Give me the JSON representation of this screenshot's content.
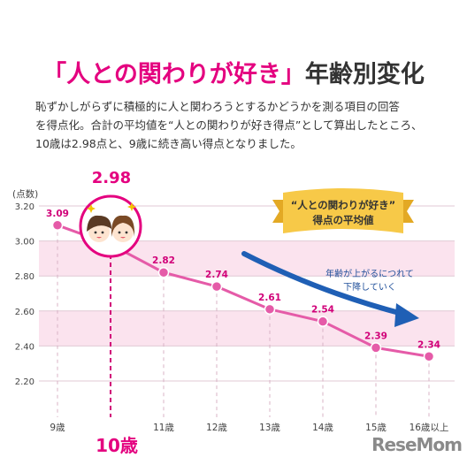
{
  "title": {
    "part1": "「人との関わりが好き」",
    "part2": "年齢別変化"
  },
  "description": "恥ずかしがらずに積極的に人と関わろうとするかどうかを測る項目の回答\nを得点化。合計の平均値を“人との関わりが好き得点”として算出したところ、\n10歳は2.98点と、9歳に続き高い得点となりました。",
  "banner": {
    "line1": "“人との関わりが好き”",
    "line2": "得点の平均値"
  },
  "trend_note": {
    "line1": "年齢が上がるにつれて",
    "line2": "下降していく"
  },
  "highlight": {
    "age_label": "10歳",
    "value_label": "2.98"
  },
  "watermark": "ReseMom",
  "colors": {
    "accent": "#e4007f",
    "line": "#e55ba8",
    "band": "#fbe3ee",
    "arrow": "#1f5fb5",
    "banner": "#f7c948"
  },
  "chart_data": {
    "type": "line",
    "title": "「人との関わりが好き」年齢別変化",
    "ylabel": "(点数)",
    "categories": [
      "9歳",
      "10歳",
      "11歳",
      "12歳",
      "13歳",
      "14歳",
      "15歳",
      "16歳以上"
    ],
    "values": [
      3.09,
      2.98,
      2.82,
      2.74,
      2.61,
      2.54,
      2.39,
      2.34
    ],
    "data_labels": [
      "3.09",
      "",
      "2.82",
      "2.74",
      "2.61",
      "2.54",
      "2.39",
      "2.34"
    ],
    "ylim": [
      2.2,
      3.2
    ],
    "yticks": [
      2.2,
      2.4,
      2.6,
      2.8,
      3.0,
      3.2
    ],
    "ytick_labels": [
      "2.20",
      "2.40",
      "2.60",
      "2.80",
      "3.00",
      "3.20"
    ],
    "grid": true
  }
}
